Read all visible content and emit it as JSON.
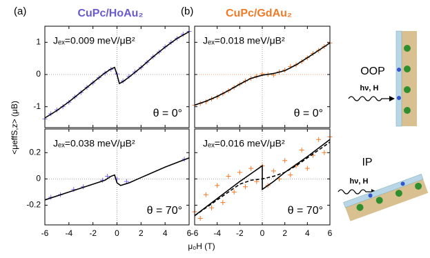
{
  "chart_data": [
    {
      "type": "line",
      "panel_label": "(a)",
      "title": "CuPc/HoAu₂",
      "title_color": "#6a5acd",
      "jex_label": "Jₑₓ=0.009 meV/μB²",
      "angle_label": "θ = 0°",
      "xlim": [
        -6,
        6
      ],
      "ylim": [
        -1.65,
        1.5
      ],
      "xticks": [
        -6,
        -4,
        -2,
        0,
        2,
        4,
        6
      ],
      "yticks": [
        -1,
        0,
        1
      ],
      "show_xtick_labels": false,
      "show_ytick_labels": true,
      "series": [
        {
          "style": "markers",
          "color": "#7b6cf0",
          "x": [
            -6,
            -5.5,
            -5,
            -4.5,
            -4,
            -3.5,
            -3,
            -2.5,
            -2,
            -1.5,
            -1,
            -0.5,
            0,
            0.5,
            1,
            1.5,
            2,
            2.5,
            3,
            3.5,
            4,
            4.5,
            5,
            5.5,
            6
          ],
          "values": [
            -1.38,
            -1.22,
            -1.1,
            -1.0,
            -0.86,
            -0.7,
            -0.56,
            -0.4,
            -0.26,
            -0.1,
            0.04,
            0.16,
            0.02,
            -0.2,
            -0.06,
            0.08,
            0.22,
            0.38,
            0.55,
            0.7,
            0.86,
            1.0,
            1.12,
            1.25,
            1.34
          ]
        },
        {
          "style": "solid",
          "color": "#000000",
          "x": [
            -6,
            -5,
            -4,
            -3,
            -2,
            -1,
            -0.5,
            -0.2,
            0,
            0.2,
            0.5,
            1,
            2,
            3,
            4,
            5,
            6
          ],
          "values": [
            -1.35,
            -1.12,
            -0.85,
            -0.55,
            -0.25,
            0.05,
            0.17,
            0.22,
            0.0,
            -0.28,
            -0.22,
            -0.08,
            0.22,
            0.55,
            0.85,
            1.12,
            1.33
          ]
        }
      ]
    },
    {
      "type": "line",
      "panel_label": "(b)",
      "title": "CuPc/GdAu₂",
      "title_color": "#f07a28",
      "jex_label": "Jₑₓ=0.018 meV/μB²",
      "angle_label": "θ = 0°",
      "xlim": [
        -6,
        6
      ],
      "ylim": [
        -1.65,
        1.5
      ],
      "xticks": [
        -6,
        -4,
        -2,
        0,
        2,
        4,
        6
      ],
      "yticks": [
        -1,
        0,
        1
      ],
      "show_xtick_labels": false,
      "show_ytick_labels": false,
      "series": [
        {
          "style": "markers",
          "color": "#f07a28",
          "x": [
            -6,
            -5.5,
            -5,
            -4.5,
            -4,
            -3.5,
            -3,
            -2.5,
            -2,
            -1.5,
            -1,
            -0.5,
            0,
            0.5,
            1,
            1.5,
            2,
            2.5,
            3,
            3.5,
            4,
            4.5,
            5,
            5.5,
            6
          ],
          "values": [
            -0.95,
            -0.9,
            -0.85,
            -0.76,
            -0.7,
            -0.6,
            -0.5,
            -0.4,
            -0.3,
            -0.2,
            -0.12,
            -0.05,
            0.02,
            0.0,
            -0.02,
            0.08,
            0.14,
            0.25,
            0.3,
            0.4,
            0.52,
            0.65,
            0.75,
            0.87,
            0.98
          ]
        },
        {
          "style": "solid",
          "color": "#000000",
          "x": [
            -6,
            -5,
            -4,
            -3,
            -2,
            -1,
            0,
            1,
            2,
            3,
            4,
            5,
            6
          ],
          "values": [
            -0.95,
            -0.83,
            -0.68,
            -0.5,
            -0.3,
            -0.12,
            -0.02,
            0.03,
            0.12,
            0.3,
            0.52,
            0.75,
            0.98
          ]
        }
      ]
    },
    {
      "type": "line",
      "jex_label": "Jₑₓ=0.038 meV/μB²",
      "angle_label": "θ = 70°",
      "xlim": [
        -6,
        6
      ],
      "ylim": [
        -0.35,
        0.38
      ],
      "xticks": [
        -6,
        -4,
        -2,
        0,
        2,
        4,
        6
      ],
      "yticks": [
        -0.2,
        0,
        0.2
      ],
      "show_xtick_labels": true,
      "show_ytick_labels": true,
      "series": [
        {
          "style": "markers",
          "color": "#7b6cf0",
          "x": [
            -5.5,
            -4.7,
            -3.6,
            -2.8,
            -1.2,
            -0.8,
            0,
            0.8,
            5.6
          ],
          "values": [
            -0.14,
            -0.12,
            -0.08,
            -0.06,
            -0.01,
            0.02,
            0.0,
            -0.02,
            0.15
          ]
        },
        {
          "style": "solid",
          "color": "#000000",
          "x": [
            -6,
            -4,
            -2,
            -1,
            -0.5,
            -0.2,
            0,
            0.3,
            1,
            2,
            4,
            6
          ],
          "values": [
            -0.16,
            -0.1,
            -0.04,
            -0.01,
            0.02,
            0.03,
            -0.03,
            -0.05,
            -0.03,
            0.01,
            0.09,
            0.16
          ]
        }
      ]
    },
    {
      "type": "line",
      "jex_label": "Jₑₓ=0.016 meV/μB²",
      "angle_label": "θ = 70°",
      "xlim": [
        -6,
        6
      ],
      "ylim": [
        -0.35,
        0.38
      ],
      "xticks": [
        -6,
        -4,
        -2,
        0,
        2,
        4,
        6
      ],
      "yticks": [
        -0.2,
        0,
        0.2
      ],
      "show_xtick_labels": true,
      "show_ytick_labels": false,
      "series": [
        {
          "style": "markers",
          "color": "#f07a28",
          "x": [
            -6,
            -5.5,
            -5,
            -4.5,
            -4,
            -3.5,
            -3,
            -2.5,
            -2,
            -1.5,
            -1,
            -0.5,
            0,
            0.5,
            1,
            1.5,
            2,
            2.5,
            3,
            3.5,
            4,
            4.5,
            5,
            5.5,
            6
          ],
          "values": [
            -0.25,
            -0.3,
            -0.12,
            -0.22,
            -0.05,
            -0.18,
            0.02,
            -0.1,
            0.05,
            -0.06,
            0.08,
            -0.02,
            0.1,
            -0.05,
            0.06,
            0.0,
            0.14,
            0.03,
            0.1,
            0.22,
            0.08,
            0.18,
            0.3,
            0.2,
            0.32
          ]
        },
        {
          "style": "solid",
          "color": "#000000",
          "x": [
            -6,
            -4,
            -2,
            -1,
            0,
            0,
            1,
            2,
            4,
            6
          ],
          "values": [
            -0.28,
            -0.15,
            -0.02,
            0.04,
            0.1,
            -0.08,
            -0.02,
            0.05,
            0.17,
            0.3
          ]
        },
        {
          "style": "dashed",
          "color": "#000000",
          "x": [
            -6,
            -4,
            -3,
            -2,
            -1,
            0,
            1,
            2,
            3,
            4,
            6
          ],
          "values": [
            -0.28,
            -0.16,
            -0.1,
            -0.04,
            -0.01,
            0,
            0.02,
            0.05,
            0.1,
            0.16,
            0.28
          ]
        }
      ]
    }
  ],
  "figure": {
    "x_label": "μ₀H (T)",
    "y_label": "<μeffS,z> (μB)"
  },
  "illustrations": [
    {
      "label": "OOP",
      "beam": "hν, H"
    },
    {
      "label": "IP",
      "beam": "hν, H"
    }
  ]
}
